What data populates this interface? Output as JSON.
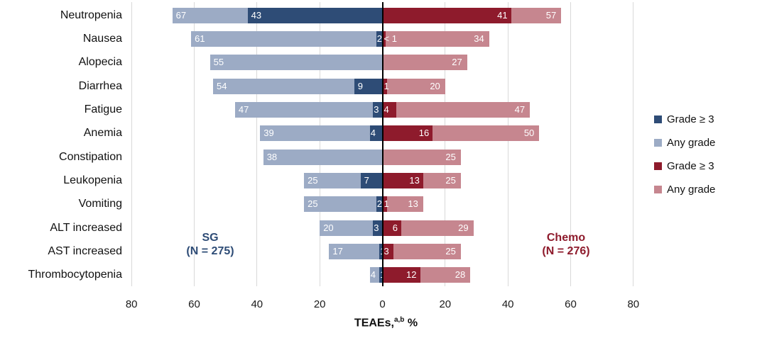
{
  "chart_data": {
    "type": "bar",
    "variant": "diverging-tornado",
    "title": "",
    "xlabel_prefix": "TEAEs,",
    "xlabel_sup": "a,b",
    "xlabel_suffix": " %",
    "x_ticks": [
      {
        "label": "80",
        "value": -80
      },
      {
        "label": "60",
        "value": -60
      },
      {
        "label": "40",
        "value": -40
      },
      {
        "label": "20",
        "value": -20
      },
      {
        "label": "0",
        "value": 0
      },
      {
        "label": "20",
        "value": 20
      },
      {
        "label": "40",
        "value": 40
      },
      {
        "label": "60",
        "value": 60
      },
      {
        "label": "80",
        "value": 80
      }
    ],
    "axis_range": [
      -80,
      80
    ],
    "grid": true,
    "left_group": {
      "name": "SG",
      "n_label": "(N = 275)"
    },
    "right_group": {
      "name": "Chemo",
      "n_label": "(N = 276)"
    },
    "rows": [
      {
        "category": "Neutropenia",
        "sg_any": {
          "value": 67,
          "label": "67"
        },
        "sg_g3": {
          "value": 43,
          "label": "43"
        },
        "chemo_g3": {
          "value": 41,
          "label": "41"
        },
        "chemo_any": {
          "value": 57,
          "label": "57"
        }
      },
      {
        "category": "Nausea",
        "sg_any": {
          "value": 61,
          "label": "61"
        },
        "sg_g3": {
          "value": 2,
          "label": "2"
        },
        "chemo_g3": {
          "value": 0.5,
          "label": "< 1"
        },
        "chemo_any": {
          "value": 34,
          "label": "34"
        }
      },
      {
        "category": "Alopecia",
        "sg_any": {
          "value": 55,
          "label": "55"
        },
        "sg_g3": null,
        "chemo_g3": null,
        "chemo_any": {
          "value": 27,
          "label": "27"
        }
      },
      {
        "category": "Diarrhea",
        "sg_any": {
          "value": 54,
          "label": "54"
        },
        "sg_g3": {
          "value": 9,
          "label": "9"
        },
        "chemo_g3": {
          "value": 1,
          "label": "1"
        },
        "chemo_any": {
          "value": 20,
          "label": "20"
        }
      },
      {
        "category": "Fatigue",
        "sg_any": {
          "value": 47,
          "label": "47"
        },
        "sg_g3": {
          "value": 3,
          "label": "3"
        },
        "chemo_g3": {
          "value": 4,
          "label": "4"
        },
        "chemo_any": {
          "value": 47,
          "label": "47"
        }
      },
      {
        "category": "Anemia",
        "sg_any": {
          "value": 39,
          "label": "39"
        },
        "sg_g3": {
          "value": 4,
          "label": "4"
        },
        "chemo_g3": {
          "value": 16,
          "label": "16"
        },
        "chemo_any": {
          "value": 50,
          "label": "50"
        }
      },
      {
        "category": "Constipation",
        "sg_any": {
          "value": 38,
          "label": "38"
        },
        "sg_g3": null,
        "chemo_g3": null,
        "chemo_any": {
          "value": 25,
          "label": "25"
        }
      },
      {
        "category": "Leukopenia",
        "sg_any": {
          "value": 25,
          "label": "25"
        },
        "sg_g3": {
          "value": 7,
          "label": "7"
        },
        "chemo_g3": {
          "value": 13,
          "label": "13"
        },
        "chemo_any": {
          "value": 25,
          "label": "25"
        }
      },
      {
        "category": "Vomiting",
        "sg_any": {
          "value": 25,
          "label": "25"
        },
        "sg_g3": {
          "value": 2,
          "label": "2"
        },
        "chemo_g3": {
          "value": 1,
          "label": "1"
        },
        "chemo_any": {
          "value": 13,
          "label": "13"
        }
      },
      {
        "category": "ALT increased",
        "sg_any": {
          "value": 20,
          "label": "20"
        },
        "sg_g3": {
          "value": 3,
          "label": "3"
        },
        "chemo_g3": {
          "value": 6,
          "label": "6"
        },
        "chemo_any": {
          "value": 29,
          "label": "29"
        }
      },
      {
        "category": "AST increased",
        "sg_any": {
          "value": 17,
          "label": "17"
        },
        "sg_g3": {
          "value": 1,
          "label": "1"
        },
        "chemo_g3": {
          "value": 3,
          "label": "3"
        },
        "chemo_any": {
          "value": 25,
          "label": "25"
        }
      },
      {
        "category": "Thrombocytopenia",
        "sg_any": {
          "value": 4,
          "label": "4"
        },
        "sg_g3": {
          "value": 1,
          "label": "1"
        },
        "chemo_g3": {
          "value": 12,
          "label": "12"
        },
        "chemo_any": {
          "value": 28,
          "label": "28"
        }
      }
    ],
    "legend": [
      {
        "label": "Grade ≥ 3",
        "color": "#2E4C76"
      },
      {
        "label": "Any grade",
        "color": "#9CABC5"
      },
      {
        "label": "Grade ≥ 3",
        "color": "#8E1B2C"
      },
      {
        "label": "Any grade",
        "color": "#C6868F"
      }
    ],
    "legend_position": "right",
    "colors": {
      "sg_g3": "#2E4C76",
      "sg_any": "#9CABC5",
      "chemo_g3": "#8E1B2C",
      "chemo_any": "#C6868F",
      "gridline": "#D9D9D9",
      "zero_line": "#000000",
      "sg_text": "#2E4C76",
      "chemo_text": "#8E1B2C"
    }
  }
}
